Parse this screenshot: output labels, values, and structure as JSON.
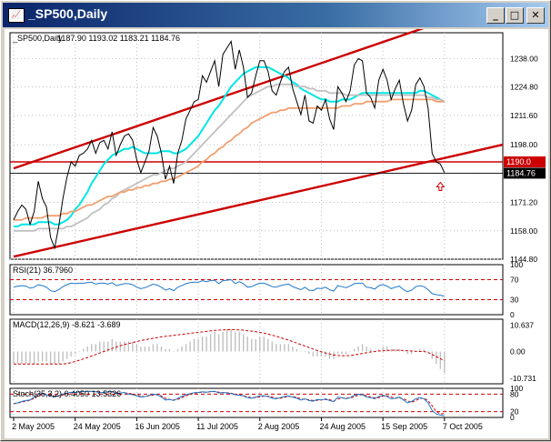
{
  "window": {
    "title": "_SP500,Daily",
    "icon_name": "chart-window-icon",
    "buttons": {
      "minimize": "_",
      "maximize": "□",
      "close": "✕"
    }
  },
  "chart_data": [
    {
      "type": "line",
      "panel": "price",
      "title": "_SP500,Daily",
      "ohlc_label": "1187.90 1193.02 1183.21 1184.76",
      "ylim": [
        1144.8,
        1250
      ],
      "y_ticks": [
        1238.0,
        1224.8,
        1211.6,
        1198.0,
        1184.76,
        1171.2,
        1158.0,
        1144.8
      ],
      "y_tick_labels": [
        "1238.00",
        "1224.80",
        "1211.60",
        "1198.00",
        "1184.76",
        "1171.20",
        "1158.00",
        "1144.80"
      ],
      "x_tick_labels": [
        "2 May 2005",
        "24 May 2005",
        "16 Jun 2005",
        "11 Jul 2005",
        "2 Aug 2005",
        "24 Aug 2005",
        "15 Sep 2005",
        "7 Oct 2005"
      ],
      "horizontal_lines": [
        {
          "label": "1190.0",
          "value": 1190.0,
          "color": "#cc0000"
        },
        {
          "label": "1184.76",
          "value": 1184.76,
          "color": "#000000"
        }
      ],
      "series": [
        {
          "role": "close",
          "color": "#000000",
          "values": [
            1163,
            1167,
            1170,
            1168,
            1161,
            1167,
            1181,
            1173,
            1169,
            1155,
            1150,
            1160,
            1173,
            1183,
            1190,
            1188,
            1193,
            1194,
            1196,
            1200,
            1194,
            1199,
            1200,
            1196,
            1204,
            1193,
            1198,
            1202,
            1203,
            1200,
            1191,
            1185,
            1190,
            1195,
            1206,
            1202,
            1194,
            1182,
            1188,
            1180,
            1194,
            1200,
            1210,
            1214,
            1218,
            1219,
            1230,
            1227,
            1232,
            1237,
            1225,
            1240,
            1243,
            1246,
            1233,
            1242,
            1234,
            1220,
            1222,
            1230,
            1237,
            1237,
            1232,
            1223,
            1221,
            1227,
            1232,
            1234,
            1224,
            1218,
            1212,
            1221,
            1209,
            1208,
            1216,
            1214,
            1219,
            1210,
            1205,
            1225,
            1222,
            1218,
            1223,
            1235,
            1238,
            1237,
            1222,
            1220,
            1215,
            1228,
            1233,
            1228,
            1219,
            1224,
            1228,
            1217,
            1209,
            1214,
            1226,
            1229,
            1225,
            1215,
            1194,
            1190,
            1189,
            1185
          ]
        },
        {
          "role": "ma-short",
          "color": "#00e5e5",
          "values": [
            1160,
            1160,
            1161,
            1161,
            1161,
            1161,
            1162,
            1162,
            1162,
            1162,
            1161,
            1161,
            1162,
            1163,
            1165,
            1168,
            1170,
            1173,
            1176,
            1180,
            1183,
            1186,
            1189,
            1191,
            1193,
            1194,
            1195,
            1196,
            1196,
            1197,
            1196,
            1195,
            1194,
            1194,
            1194,
            1194,
            1195,
            1195,
            1195,
            1194,
            1194,
            1195,
            1196,
            1198,
            1200,
            1202,
            1205,
            1208,
            1211,
            1214,
            1216,
            1219,
            1222,
            1225,
            1227,
            1229,
            1231,
            1232,
            1233,
            1234,
            1234,
            1234,
            1234,
            1233,
            1232,
            1231,
            1230,
            1229,
            1227,
            1226,
            1224,
            1223,
            1222,
            1221,
            1220,
            1219,
            1219,
            1218,
            1218,
            1218,
            1219,
            1219,
            1219,
            1220,
            1221,
            1222,
            1222,
            1222,
            1222,
            1222,
            1222,
            1222,
            1222,
            1222,
            1222,
            1222,
            1222,
            1222,
            1222,
            1223,
            1223,
            1222,
            1221,
            1220,
            1219,
            1218
          ]
        },
        {
          "role": "ma-medium",
          "color": "#c0c0c0",
          "values": [
            1158,
            1158,
            1158,
            1158,
            1158,
            1158,
            1159,
            1159,
            1159,
            1159,
            1159,
            1159,
            1159,
            1160,
            1160,
            1161,
            1162,
            1163,
            1164,
            1166,
            1167,
            1168,
            1170,
            1171,
            1173,
            1174,
            1176,
            1177,
            1178,
            1179,
            1180,
            1181,
            1182,
            1183,
            1184,
            1184,
            1185,
            1186,
            1187,
            1187,
            1188,
            1189,
            1190,
            1192,
            1194,
            1196,
            1198,
            1200,
            1202,
            1204,
            1206,
            1208,
            1210,
            1212,
            1214,
            1216,
            1218,
            1220,
            1221,
            1222,
            1223,
            1224,
            1225,
            1225,
            1226,
            1226,
            1226,
            1226,
            1226,
            1225,
            1225,
            1225,
            1224,
            1224,
            1223,
            1223,
            1223,
            1222,
            1222,
            1222,
            1222,
            1221,
            1221,
            1221,
            1221,
            1221,
            1221,
            1221,
            1221,
            1221,
            1221,
            1221,
            1221,
            1221,
            1221,
            1221,
            1221,
            1221,
            1221,
            1221,
            1221,
            1220,
            1220,
            1219,
            1219,
            1218
          ]
        },
        {
          "role": "ma-long",
          "color": "#f0a070",
          "values": [
            1163,
            1163,
            1163,
            1164,
            1164,
            1164,
            1164,
            1164,
            1165,
            1165,
            1165,
            1165,
            1166,
            1166,
            1167,
            1167,
            1168,
            1169,
            1170,
            1170,
            1171,
            1172,
            1173,
            1174,
            1174,
            1175,
            1176,
            1176,
            1177,
            1177,
            1178,
            1178,
            1179,
            1179,
            1180,
            1180,
            1181,
            1181,
            1182,
            1182,
            1183,
            1184,
            1185,
            1186,
            1187,
            1188,
            1190,
            1191,
            1193,
            1194,
            1196,
            1197,
            1199,
            1200,
            1202,
            1203,
            1205,
            1206,
            1208,
            1209,
            1210,
            1211,
            1212,
            1213,
            1213,
            1214,
            1214,
            1215,
            1215,
            1215,
            1215,
            1215,
            1215,
            1215,
            1215,
            1215,
            1215,
            1215,
            1215,
            1215,
            1216,
            1216,
            1216,
            1217,
            1217,
            1217,
            1218,
            1218,
            1218,
            1218,
            1218,
            1218,
            1219,
            1219,
            1219,
            1219,
            1219,
            1219,
            1219,
            1219,
            1219,
            1219,
            1219,
            1218,
            1218,
            1218
          ]
        }
      ],
      "trendlines": [
        {
          "color": "#cc0000",
          "from": [
            0,
            1187
          ],
          "to": [
            115,
            1262
          ]
        },
        {
          "color": "#cc0000",
          "from": [
            0,
            1146
          ],
          "to": [
            133,
            1198
          ]
        }
      ],
      "arrow_marker": {
        "index": 104,
        "value": 1180.5,
        "color": "#cc0000"
      }
    },
    {
      "type": "line",
      "panel": "rsi",
      "title": "RSI(21) 36.7960",
      "ylim": [
        0,
        100
      ],
      "y_tick_labels": [
        "100",
        "70",
        "30",
        "0"
      ],
      "levels": [
        70,
        30
      ],
      "series": [
        {
          "color": "#1e78c8",
          "values": [
            55,
            57,
            58,
            57,
            53,
            55,
            60,
            58,
            55,
            48,
            46,
            50,
            56,
            60,
            63,
            62,
            63,
            63,
            64,
            65,
            61,
            63,
            63,
            61,
            64,
            58,
            60,
            62,
            62,
            60,
            55,
            52,
            54,
            57,
            61,
            59,
            55,
            49,
            52,
            48,
            55,
            58,
            62,
            64,
            65,
            65,
            68,
            66,
            68,
            69,
            62,
            68,
            69,
            70,
            62,
            66,
            62,
            55,
            56,
            60,
            63,
            63,
            60,
            56,
            55,
            58,
            60,
            61,
            56,
            53,
            50,
            55,
            49,
            48,
            53,
            52,
            55,
            50,
            47,
            58,
            56,
            54,
            57,
            62,
            63,
            63,
            55,
            54,
            51,
            58,
            60,
            57,
            52,
            55,
            57,
            50,
            46,
            49,
            56,
            58,
            56,
            50,
            42,
            40,
            39,
            37
          ]
        }
      ]
    },
    {
      "type": "bar",
      "panel": "macd",
      "title": "MACD(12,26,9) -8.621 -3.689",
      "y_tick_labels": [
        "10.637",
        "0.00",
        "-10.731"
      ],
      "ylim": [
        -13,
        13
      ],
      "series": [
        {
          "name": "histogram",
          "color": "#c0c0c0",
          "values": [
            -5,
            -5,
            -5,
            -5,
            -5,
            -5,
            -4,
            -4,
            -4,
            -5,
            -5,
            -5,
            -4,
            -3,
            -2,
            -1,
            0,
            1,
            2,
            3,
            3,
            4,
            4,
            4,
            5,
            4,
            4,
            4,
            4,
            4,
            3,
            2,
            2,
            2,
            3,
            3,
            2,
            1,
            1,
            0,
            1,
            2,
            3,
            4,
            5,
            5,
            6,
            6,
            7,
            8,
            7,
            8,
            9,
            9,
            8,
            8,
            7,
            6,
            5,
            5,
            6,
            6,
            5,
            4,
            3,
            3,
            3,
            3,
            2,
            1,
            0,
            0,
            -1,
            -2,
            -2,
            -2,
            -2,
            -3,
            -3,
            -1,
            -1,
            -1,
            0,
            1,
            2,
            3,
            2,
            1,
            0,
            1,
            2,
            2,
            1,
            1,
            1,
            0,
            -1,
            -1,
            0,
            1,
            1,
            0,
            -3,
            -5,
            -7,
            -8.6
          ]
        },
        {
          "name": "signal",
          "color": "#cc0000",
          "values": [
            -5,
            -5,
            -5,
            -5,
            -5,
            -5,
            -5,
            -5,
            -5,
            -5,
            -5,
            -5,
            -5,
            -4.8,
            -4.5,
            -4,
            -3.5,
            -3,
            -2.4,
            -1.8,
            -1.2,
            -0.6,
            0,
            0.6,
            1.2,
            1.8,
            2.3,
            2.8,
            3.2,
            3.6,
            4,
            4.4,
            4.7,
            5,
            5.3,
            5.6,
            5.9,
            6.1,
            6.3,
            6.5,
            6.7,
            6.9,
            7.1,
            7.3,
            7.5,
            7.7,
            7.9,
            8.1,
            8.3,
            8.5,
            8.6,
            8.7,
            8.8,
            8.8,
            8.8,
            8.7,
            8.6,
            8.4,
            8.2,
            8,
            7.7,
            7.4,
            7,
            6.6,
            6.1,
            5.6,
            5.1,
            4.6,
            4,
            3.4,
            2.8,
            2.2,
            1.6,
            1,
            0.4,
            -0.1,
            -0.6,
            -1,
            -1.4,
            -1.6,
            -1.7,
            -1.7,
            -1.6,
            -1.4,
            -1.1,
            -0.8,
            -0.5,
            -0.2,
            0,
            0.2,
            0.3,
            0.4,
            0.5,
            0.5,
            0.5,
            0.4,
            0.3,
            0.2,
            0.1,
            0,
            0,
            -0.4,
            -1.2,
            -2,
            -2.9,
            -3.7
          ]
        }
      ]
    },
    {
      "type": "line",
      "panel": "stoch",
      "title": "Stoch(35,3,2) 6.4050 13.5326",
      "ylim": [
        0,
        100
      ],
      "y_tick_labels": [
        "100",
        "80",
        "20",
        "0"
      ],
      "levels": [
        80,
        20
      ],
      "series": [
        {
          "name": "main",
          "color": "#1e78c8",
          "values": [
            48,
            50,
            55,
            58,
            60,
            70,
            80,
            82,
            78,
            74,
            70,
            75,
            80,
            84,
            87,
            86,
            88,
            89,
            90,
            90,
            88,
            85,
            86,
            88,
            89,
            82,
            84,
            86,
            80,
            78,
            74,
            70,
            72,
            76,
            80,
            78,
            70,
            60,
            62,
            58,
            66,
            72,
            78,
            82,
            85,
            86,
            88,
            87,
            89,
            90,
            84,
            86,
            84,
            82,
            78,
            76,
            74,
            68,
            66,
            70,
            74,
            74,
            72,
            66,
            64,
            68,
            72,
            74,
            70,
            66,
            60,
            64,
            58,
            56,
            62,
            60,
            64,
            58,
            54,
            70,
            68,
            64,
            68,
            76,
            80,
            78,
            70,
            68,
            64,
            72,
            76,
            72,
            64,
            66,
            70,
            60,
            50,
            55,
            64,
            68,
            64,
            50,
            24,
            12,
            8,
            6
          ]
        },
        {
          "name": "signal",
          "color": "#cc0000",
          "values": [
            47,
            49,
            53,
            56,
            59,
            66,
            74,
            80,
            80,
            77,
            73,
            73,
            77,
            82,
            85,
            86,
            87,
            88,
            89,
            90,
            89,
            87,
            86,
            87,
            88,
            85,
            84,
            85,
            83,
            80,
            77,
            73,
            72,
            74,
            77,
            78,
            74,
            66,
            62,
            60,
            62,
            68,
            74,
            79,
            83,
            85,
            87,
            87,
            88,
            89,
            87,
            85,
            85,
            83,
            80,
            77,
            75,
            71,
            68,
            68,
            71,
            73,
            73,
            70,
            66,
            66,
            69,
            72,
            72,
            69,
            64,
            62,
            61,
            58,
            59,
            60,
            62,
            61,
            57,
            63,
            67,
            67,
            67,
            71,
            77,
            78,
            75,
            70,
            67,
            68,
            73,
            74,
            70,
            66,
            67,
            65,
            57,
            52,
            58,
            65,
            66,
            58,
            40,
            20,
            12,
            13.5
          ]
        }
      ]
    }
  ]
}
